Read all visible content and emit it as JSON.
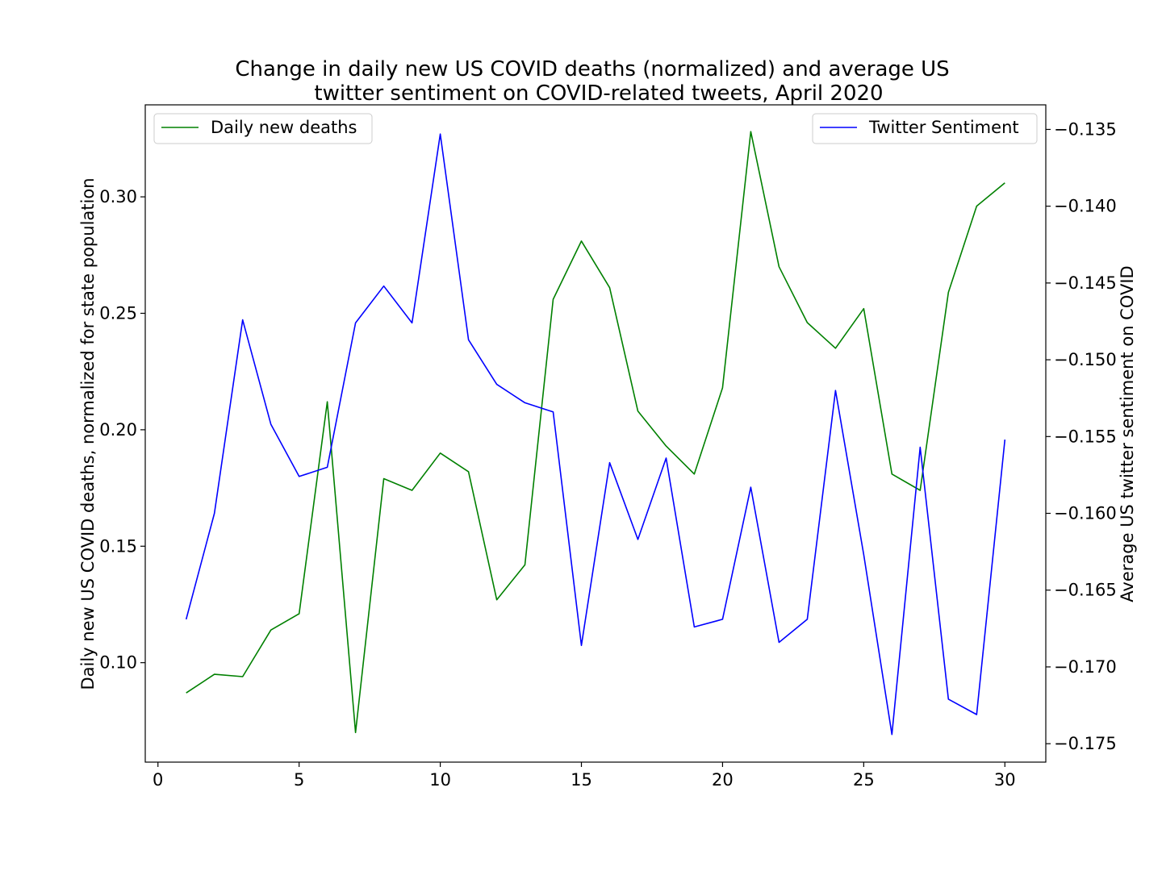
{
  "chart_data": {
    "type": "line",
    "title_lines": [
      "Change in daily new US COVID deaths (normalized) and average US",
      "twitter sentiment on COVID-related tweets, April 2020"
    ],
    "xlabel": "",
    "ylabel_left": "Daily new US COVID deaths, normalized for state population",
    "ylabel_right": "Average US twitter sentiment on COVID",
    "xlim": [
      -0.45,
      31.45
    ],
    "ylim_left": [
      0.0573,
      0.3395
    ],
    "ylim_right": [
      -0.1762,
      -0.1334
    ],
    "x_ticks": [
      0,
      5,
      10,
      15,
      20,
      25,
      30
    ],
    "y_ticks_left": [
      0.1,
      0.15,
      0.2,
      0.25,
      0.3
    ],
    "y_ticks_left_labels": [
      "0.10",
      "0.15",
      "0.20",
      "0.25",
      "0.30"
    ],
    "y_ticks_right": [
      -0.135,
      -0.14,
      -0.145,
      -0.15,
      -0.155,
      -0.16,
      -0.165,
      -0.17,
      -0.175
    ],
    "y_ticks_right_labels": [
      "−0.135",
      "−0.140",
      "−0.145",
      "−0.150",
      "−0.155",
      "−0.160",
      "−0.165",
      "−0.170",
      "−0.175"
    ],
    "grid": false,
    "x": [
      1,
      2,
      3,
      4,
      5,
      6,
      7,
      8,
      9,
      10,
      11,
      12,
      13,
      14,
      15,
      16,
      17,
      18,
      19,
      20,
      21,
      22,
      23,
      24,
      25,
      26,
      27,
      28,
      29,
      30
    ],
    "series": [
      {
        "name": "Daily new deaths",
        "axis": "left",
        "color": "#008000",
        "legend_position": "upper-left",
        "values": [
          0.087,
          0.095,
          0.094,
          0.114,
          0.121,
          0.212,
          0.07,
          0.179,
          0.174,
          0.19,
          0.182,
          0.127,
          0.142,
          0.256,
          0.281,
          0.261,
          0.208,
          0.193,
          0.181,
          0.218,
          0.328,
          0.27,
          0.246,
          0.235,
          0.252,
          0.181,
          0.174,
          0.259,
          0.296,
          0.306
        ]
      },
      {
        "name": "Twitter Sentiment",
        "axis": "right",
        "color": "#0000ff",
        "legend_position": "upper-right",
        "values": [
          -0.1669,
          -0.16,
          -0.1474,
          -0.1542,
          -0.1576,
          -0.157,
          -0.1476,
          -0.1452,
          -0.1476,
          -0.1353,
          -0.1487,
          -0.1516,
          -0.1528,
          -0.1534,
          -0.1686,
          -0.1567,
          -0.1617,
          -0.1564,
          -0.1674,
          -0.1669,
          -0.1583,
          -0.1684,
          -0.1669,
          -0.152,
          -0.1627,
          -0.1744,
          -0.1557,
          -0.1721,
          -0.1731,
          -0.1552
        ]
      }
    ]
  }
}
